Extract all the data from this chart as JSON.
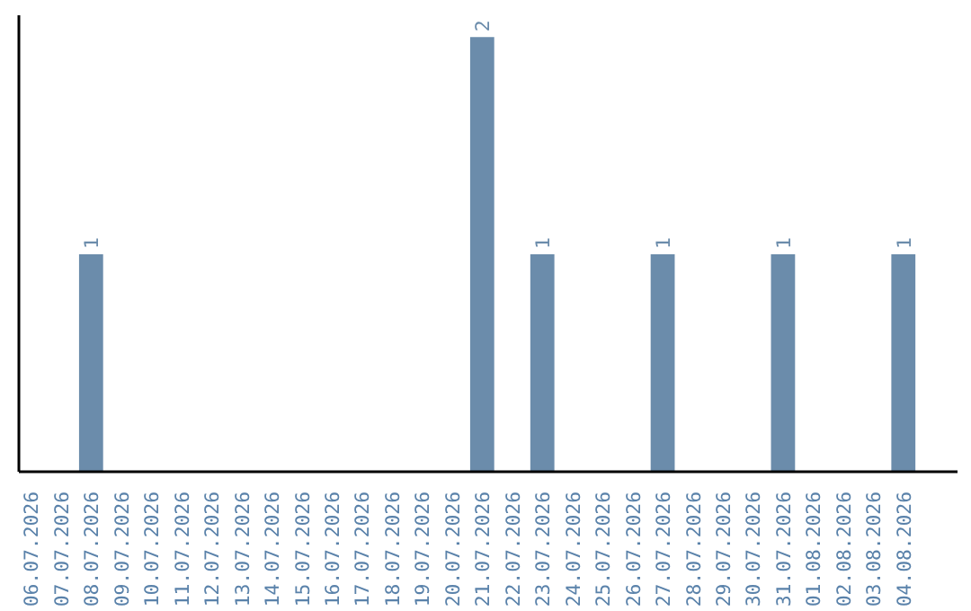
{
  "chart_data": {
    "type": "bar",
    "categories": [
      "06.07.2026",
      "07.07.2026",
      "08.07.2026",
      "09.07.2026",
      "10.07.2026",
      "11.07.2026",
      "12.07.2026",
      "13.07.2026",
      "14.07.2026",
      "15.07.2026",
      "16.07.2026",
      "17.07.2026",
      "18.07.2026",
      "19.07.2026",
      "20.07.2026",
      "21.07.2026",
      "22.07.2026",
      "23.07.2026",
      "24.07.2026",
      "25.07.2026",
      "26.07.2026",
      "27.07.2026",
      "28.07.2026",
      "29.07.2026",
      "30.07.2026",
      "31.07.2026",
      "01.08.2026",
      "02.08.2026",
      "03.08.2026",
      "04.08.2026"
    ],
    "values": [
      0,
      0,
      1,
      0,
      0,
      0,
      0,
      0,
      0,
      0,
      0,
      0,
      0,
      0,
      0,
      2,
      0,
      1,
      0,
      0,
      0,
      1,
      0,
      0,
      0,
      1,
      0,
      0,
      0,
      1
    ],
    "value_labels": [
      null,
      null,
      "1",
      null,
      null,
      null,
      null,
      null,
      null,
      null,
      null,
      null,
      null,
      null,
      null,
      "2",
      null,
      "1",
      null,
      null,
      null,
      "1",
      null,
      null,
      null,
      "1",
      null,
      null,
      null,
      "1"
    ],
    "color": "#6b8cab",
    "ylim": [
      0,
      2.1
    ],
    "tick_labels": "x",
    "grid": false
  }
}
